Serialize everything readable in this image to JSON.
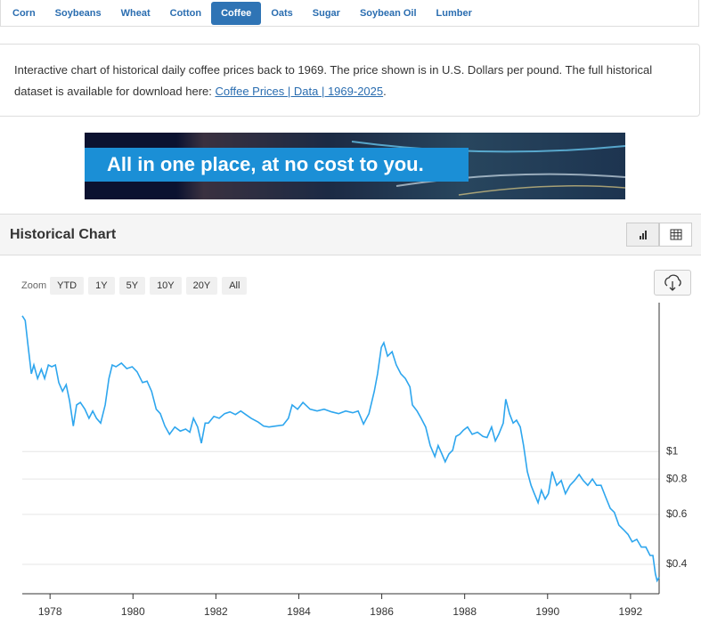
{
  "tabs": [
    {
      "label": "Corn",
      "active": false
    },
    {
      "label": "Soybeans",
      "active": false
    },
    {
      "label": "Wheat",
      "active": false
    },
    {
      "label": "Cotton",
      "active": false
    },
    {
      "label": "Coffee",
      "active": true
    },
    {
      "label": "Oats",
      "active": false
    },
    {
      "label": "Sugar",
      "active": false
    },
    {
      "label": "Soybean Oil",
      "active": false
    },
    {
      "label": "Lumber",
      "active": false
    }
  ],
  "description": {
    "text_before": "Interactive chart of historical daily coffee prices back to 1969. The price shown is in U.S. Dollars per pound. The full historical dataset is available for download here: ",
    "link": "Coffee Prices | Data | 1969-2025",
    "text_after": "."
  },
  "banner": {
    "text": "All in one place, at no cost to you."
  },
  "chart_panel": {
    "title": "Historical Chart",
    "zoom_label": "Zoom",
    "zoom_buttons": [
      "YTD",
      "1Y",
      "5Y",
      "10Y",
      "20Y",
      "All"
    ]
  },
  "chart_data": {
    "type": "line",
    "color": "#2ea6ee",
    "log_scale": true,
    "grid": true,
    "y_axis_side": "right",
    "x": [
      1977.33,
      1977.4,
      1977.46,
      1977.55,
      1977.61,
      1977.7,
      1977.79,
      1977.87,
      1977.96,
      1978.04,
      1978.13,
      1978.21,
      1978.3,
      1978.39,
      1978.47,
      1978.56,
      1978.64,
      1978.73,
      1978.84,
      1978.94,
      1979.03,
      1979.12,
      1979.22,
      1979.33,
      1979.42,
      1979.5,
      1979.59,
      1979.72,
      1979.85,
      1979.98,
      1980.1,
      1980.23,
      1980.34,
      1980.45,
      1980.56,
      1980.66,
      1980.77,
      1980.88,
      1981.01,
      1981.14,
      1981.27,
      1981.37,
      1981.46,
      1981.56,
      1981.65,
      1981.74,
      1981.82,
      1981.95,
      1982.08,
      1982.21,
      1982.34,
      1982.47,
      1982.6,
      1982.72,
      1982.85,
      1983.02,
      1983.15,
      1983.28,
      1983.45,
      1983.62,
      1983.75,
      1983.84,
      1983.97,
      1984.1,
      1984.27,
      1984.44,
      1984.61,
      1984.79,
      1984.96,
      1985.13,
      1985.3,
      1985.43,
      1985.56,
      1985.69,
      1985.82,
      1985.9,
      1985.99,
      1986.05,
      1986.14,
      1986.25,
      1986.35,
      1986.46,
      1986.57,
      1986.68,
      1986.74,
      1986.85,
      1986.95,
      1987.06,
      1987.17,
      1987.28,
      1987.36,
      1987.45,
      1987.53,
      1987.62,
      1987.71,
      1987.79,
      1987.88,
      1987.97,
      1988.07,
      1988.18,
      1988.31,
      1988.44,
      1988.54,
      1988.65,
      1988.74,
      1988.82,
      1988.93,
      1988.99,
      1989.08,
      1989.17,
      1989.25,
      1989.34,
      1989.42,
      1989.51,
      1989.6,
      1989.68,
      1989.77,
      1989.85,
      1989.94,
      1990.02,
      1990.11,
      1990.22,
      1990.33,
      1990.43,
      1990.54,
      1990.65,
      1990.76,
      1990.86,
      1990.97,
      1991.08,
      1991.18,
      1991.29,
      1991.4,
      1991.51,
      1991.61,
      1991.72,
      1991.83,
      1991.94,
      1992.04,
      1992.15,
      1992.26,
      1992.37,
      1992.47,
      1992.54,
      1992.6,
      1992.64,
      1992.69
    ],
    "values": [
      3.01,
      2.9,
      2.42,
      1.88,
      2.02,
      1.81,
      1.95,
      1.81,
      2.02,
      1.99,
      2.02,
      1.75,
      1.63,
      1.72,
      1.51,
      1.23,
      1.46,
      1.49,
      1.41,
      1.31,
      1.39,
      1.31,
      1.26,
      1.46,
      1.81,
      2.02,
      1.99,
      2.05,
      1.96,
      1.99,
      1.91,
      1.75,
      1.77,
      1.63,
      1.41,
      1.36,
      1.23,
      1.15,
      1.22,
      1.18,
      1.2,
      1.17,
      1.31,
      1.22,
      1.07,
      1.26,
      1.26,
      1.33,
      1.31,
      1.36,
      1.38,
      1.35,
      1.39,
      1.35,
      1.31,
      1.27,
      1.23,
      1.22,
      1.23,
      1.24,
      1.31,
      1.46,
      1.41,
      1.49,
      1.41,
      1.39,
      1.41,
      1.38,
      1.36,
      1.39,
      1.37,
      1.39,
      1.25,
      1.36,
      1.63,
      1.88,
      2.33,
      2.42,
      2.17,
      2.25,
      2.02,
      1.88,
      1.81,
      1.69,
      1.46,
      1.39,
      1.31,
      1.22,
      1.05,
      0.96,
      1.05,
      0.98,
      0.92,
      0.98,
      1.01,
      1.13,
      1.15,
      1.19,
      1.22,
      1.15,
      1.17,
      1.13,
      1.12,
      1.22,
      1.09,
      1.15,
      1.26,
      1.53,
      1.36,
      1.26,
      1.29,
      1.22,
      1.05,
      0.85,
      0.76,
      0.71,
      0.66,
      0.73,
      0.68,
      0.71,
      0.85,
      0.76,
      0.79,
      0.71,
      0.76,
      0.79,
      0.83,
      0.79,
      0.76,
      0.8,
      0.76,
      0.76,
      0.69,
      0.63,
      0.61,
      0.55,
      0.53,
      0.51,
      0.48,
      0.49,
      0.46,
      0.46,
      0.43,
      0.43,
      0.37,
      0.35,
      0.36
    ],
    "xlim": [
      1977.33,
      1992.69
    ],
    "xticks": [
      1978,
      1980,
      1982,
      1984,
      1986,
      1988,
      1990,
      1992
    ],
    "ylim": [
      0.315,
      3.35
    ],
    "yticks": [
      {
        "value": 0.4,
        "label": "$0.4"
      },
      {
        "value": 0.6,
        "label": "$0.6"
      },
      {
        "value": 0.8,
        "label": "$0.8"
      },
      {
        "value": 1,
        "label": "$1"
      }
    ]
  }
}
